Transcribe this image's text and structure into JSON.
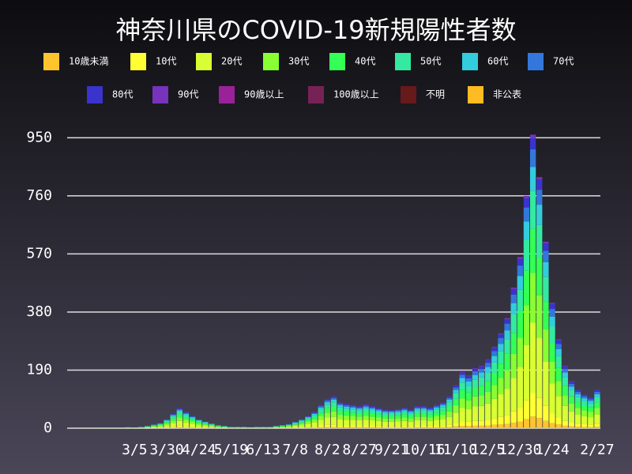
{
  "chart_data": {
    "type": "stacked-bar",
    "title": "神奈川県のCOVID-19新規陽性者数",
    "categories": [
      null,
      null,
      null,
      null,
      null,
      null,
      null,
      null,
      null,
      null,
      "3/5",
      null,
      null,
      null,
      null,
      "3/30",
      null,
      null,
      null,
      null,
      "4/24",
      null,
      null,
      null,
      null,
      "5/19",
      null,
      null,
      null,
      null,
      "6/13",
      null,
      null,
      null,
      null,
      "7/8",
      null,
      null,
      null,
      null,
      "8/2",
      null,
      null,
      null,
      null,
      "8/27",
      null,
      null,
      null,
      null,
      "9/21",
      null,
      null,
      null,
      null,
      "10/16",
      null,
      null,
      null,
      null,
      "11/10",
      null,
      null,
      null,
      null,
      "12/5",
      null,
      null,
      null,
      null,
      "12/30",
      null,
      null,
      null,
      null,
      "1/24",
      null,
      null,
      null,
      null,
      null,
      null,
      "2/27"
    ],
    "ylim": [
      0,
      1000
    ],
    "yticks": [
      0,
      190,
      380,
      570,
      760,
      950
    ],
    "grid": true,
    "series": [
      {
        "name": "10歳未満",
        "color": "#ffc42e",
        "values": [
          0,
          0,
          0,
          0,
          0,
          0,
          0,
          0,
          0,
          0,
          0,
          0,
          0,
          0,
          1,
          1,
          2,
          3,
          2,
          2,
          1,
          1,
          1,
          0,
          0,
          0,
          0,
          0,
          0,
          0,
          0,
          0,
          0,
          0,
          1,
          1,
          1,
          2,
          2,
          3,
          4,
          4,
          3,
          3,
          3,
          3,
          3,
          3,
          3,
          2,
          2,
          2,
          3,
          2,
          3,
          3,
          3,
          3,
          3,
          4,
          6,
          7,
          7,
          8,
          8,
          9,
          11,
          12,
          14,
          18,
          22,
          30,
          38,
          33,
          24,
          16,
          12,
          8,
          6,
          5,
          4,
          4,
          5
        ]
      },
      {
        "name": "10代",
        "color": "#ffff33",
        "values": [
          0,
          0,
          0,
          0,
          0,
          0,
          0,
          0,
          0,
          0,
          0,
          0,
          1,
          1,
          1,
          2,
          4,
          5,
          4,
          3,
          2,
          2,
          1,
          1,
          1,
          0,
          0,
          0,
          0,
          0,
          0,
          0,
          1,
          1,
          1,
          2,
          2,
          3,
          4,
          6,
          8,
          8,
          7,
          6,
          6,
          6,
          6,
          6,
          5,
          5,
          5,
          5,
          5,
          5,
          6,
          6,
          5,
          6,
          7,
          8,
          11,
          15,
          14,
          16,
          16,
          18,
          21,
          25,
          29,
          37,
          45,
          61,
          77,
          66,
          49,
          33,
          23,
          16,
          12,
          10,
          9,
          8,
          10
        ]
      },
      {
        "name": "20代",
        "color": "#d8ff33",
        "values": [
          0,
          0,
          1,
          0,
          1,
          1,
          1,
          1,
          1,
          1,
          1,
          1,
          2,
          3,
          4,
          7,
          11,
          16,
          13,
          10,
          7,
          5,
          4,
          2,
          2,
          1,
          1,
          1,
          1,
          1,
          1,
          1,
          2,
          2,
          3,
          5,
          7,
          10,
          13,
          18,
          23,
          25,
          20,
          19,
          18,
          17,
          19,
          17,
          16,
          14,
          14,
          15,
          16,
          14,
          17,
          17,
          16,
          18,
          20,
          25,
          34,
          44,
          41,
          47,
          49,
          54,
          64,
          74,
          86,
          110,
          134,
          182,
          230,
          197,
          146,
          98,
          70,
          49,
          37,
          30,
          26,
          24,
          30
        ]
      },
      {
        "name": "30代",
        "color": "#88ff33",
        "values": [
          0,
          0,
          0,
          0,
          0,
          0,
          0,
          0,
          0,
          1,
          1,
          1,
          1,
          2,
          3,
          5,
          8,
          11,
          9,
          7,
          5,
          4,
          3,
          2,
          1,
          1,
          1,
          1,
          1,
          1,
          1,
          1,
          1,
          2,
          2,
          3,
          5,
          7,
          9,
          13,
          16,
          18,
          14,
          14,
          13,
          12,
          13,
          12,
          11,
          10,
          10,
          11,
          11,
          10,
          12,
          12,
          11,
          13,
          14,
          18,
          24,
          31,
          29,
          33,
          35,
          38,
          45,
          53,
          61,
          78,
          95,
          129,
          163,
          139,
          104,
          70,
          49,
          35,
          26,
          21,
          19,
          17,
          21
        ]
      },
      {
        "name": "40代",
        "color": "#33ff55",
        "values": [
          0,
          0,
          0,
          0,
          0,
          0,
          1,
          0,
          1,
          0,
          0,
          1,
          1,
          2,
          3,
          5,
          7,
          10,
          8,
          6,
          5,
          3,
          2,
          2,
          1,
          1,
          1,
          1,
          0,
          1,
          1,
          1,
          1,
          2,
          2,
          3,
          5,
          6,
          8,
          11,
          14,
          16,
          13,
          12,
          11,
          11,
          12,
          11,
          10,
          9,
          9,
          9,
          10,
          9,
          11,
          11,
          10,
          11,
          13,
          16,
          21,
          28,
          26,
          29,
          31,
          34,
          40,
          47,
          54,
          69,
          84,
          114,
          144,
          123,
          92,
          62,
          44,
          31,
          23,
          19,
          17,
          15,
          19
        ]
      },
      {
        "name": "50代",
        "color": "#33eaa0",
        "values": [
          0,
          0,
          0,
          0,
          0,
          0,
          0,
          0,
          0,
          1,
          0,
          1,
          1,
          2,
          2,
          4,
          6,
          8,
          7,
          5,
          4,
          3,
          2,
          1,
          1,
          1,
          1,
          1,
          1,
          1,
          1,
          1,
          1,
          1,
          2,
          3,
          4,
          5,
          7,
          10,
          12,
          14,
          11,
          10,
          10,
          9,
          10,
          9,
          8,
          8,
          8,
          8,
          9,
          8,
          9,
          9,
          9,
          10,
          11,
          14,
          18,
          24,
          22,
          25,
          27,
          29,
          34,
          40,
          47,
          60,
          73,
          99,
          125,
          107,
          79,
          53,
          38,
          27,
          20,
          16,
          14,
          13,
          16
        ]
      },
      {
        "name": "60代",
        "color": "#33ccdd",
        "values": [
          0,
          0,
          0,
          0,
          0,
          0,
          0,
          0,
          0,
          0,
          0,
          0,
          1,
          1,
          1,
          2,
          4,
          5,
          4,
          3,
          2,
          2,
          1,
          1,
          1,
          0,
          0,
          0,
          0,
          0,
          0,
          0,
          1,
          1,
          1,
          2,
          2,
          3,
          4,
          6,
          8,
          8,
          7,
          6,
          6,
          6,
          6,
          6,
          5,
          5,
          5,
          5,
          5,
          5,
          6,
          6,
          5,
          6,
          7,
          8,
          11,
          15,
          14,
          16,
          16,
          18,
          21,
          25,
          29,
          37,
          45,
          61,
          77,
          66,
          49,
          33,
          23,
          16,
          12,
          10,
          9,
          8,
          10
        ]
      },
      {
        "name": "70代",
        "color": "#3377dd",
        "values": [
          0,
          0,
          0,
          0,
          0,
          0,
          0,
          0,
          0,
          0,
          0,
          0,
          0,
          1,
          1,
          2,
          3,
          4,
          3,
          2,
          2,
          1,
          1,
          1,
          0,
          0,
          0,
          0,
          0,
          0,
          0,
          0,
          0,
          1,
          1,
          1,
          2,
          2,
          3,
          5,
          6,
          6,
          5,
          5,
          5,
          4,
          5,
          4,
          4,
          4,
          3,
          4,
          4,
          4,
          4,
          4,
          4,
          5,
          5,
          6,
          8,
          11,
          10,
          12,
          12,
          14,
          16,
          19,
          22,
          28,
          34,
          46,
          58,
          49,
          37,
          25,
          17,
          12,
          9,
          8,
          7,
          6,
          8
        ]
      },
      {
        "name": "80代",
        "color": "#3a33cc",
        "values": [
          0,
          0,
          0,
          0,
          0,
          0,
          0,
          0,
          0,
          0,
          0,
          0,
          0,
          0,
          1,
          1,
          2,
          3,
          2,
          2,
          1,
          1,
          1,
          0,
          0,
          0,
          0,
          0,
          0,
          0,
          0,
          0,
          0,
          0,
          1,
          1,
          1,
          2,
          2,
          3,
          4,
          4,
          3,
          3,
          3,
          3,
          3,
          3,
          3,
          2,
          2,
          2,
          3,
          2,
          3,
          3,
          3,
          3,
          3,
          4,
          6,
          7,
          7,
          8,
          8,
          9,
          11,
          12,
          14,
          18,
          22,
          30,
          38,
          33,
          24,
          16,
          12,
          8,
          6,
          5,
          4,
          4,
          5
        ]
      },
      {
        "name": "90代",
        "color": "#7733bb",
        "values": [
          0,
          0,
          0,
          0,
          0,
          0,
          0,
          0,
          0,
          0,
          0,
          0,
          0,
          0,
          0,
          0,
          0,
          1,
          1,
          0,
          0,
          0,
          0,
          0,
          0,
          0,
          0,
          0,
          0,
          0,
          0,
          0,
          0,
          0,
          0,
          0,
          0,
          0,
          1,
          1,
          1,
          1,
          1,
          1,
          1,
          1,
          1,
          1,
          1,
          1,
          1,
          1,
          1,
          1,
          1,
          1,
          1,
          1,
          1,
          1,
          1,
          2,
          2,
          2,
          2,
          2,
          3,
          3,
          4,
          5,
          6,
          8,
          10,
          8,
          6,
          4,
          3,
          2,
          2,
          1,
          1,
          1,
          1
        ]
      },
      {
        "name": "90歳以上",
        "color": "#992299",
        "values": [
          0,
          0,
          0,
          0,
          0,
          0,
          0,
          0,
          0,
          0,
          0,
          0,
          0,
          0,
          0,
          0,
          0,
          0,
          0,
          0,
          0,
          0,
          0,
          0,
          0,
          0,
          0,
          0,
          0,
          0,
          0,
          0,
          0,
          0,
          0,
          0,
          0,
          0,
          0,
          0,
          0,
          0,
          0,
          0,
          0,
          0,
          0,
          0,
          0,
          0,
          0,
          0,
          0,
          0,
          0,
          0,
          0,
          0,
          0,
          0,
          0,
          0,
          0,
          0,
          0,
          0,
          0,
          0,
          0,
          0,
          0,
          0,
          0,
          0,
          0,
          0,
          0,
          0,
          0,
          0,
          0,
          0,
          0
        ]
      },
      {
        "name": "100歳以上",
        "color": "#772255",
        "values": [
          0,
          0,
          0,
          0,
          0,
          0,
          0,
          0,
          0,
          0,
          0,
          0,
          0,
          0,
          0,
          0,
          0,
          0,
          0,
          0,
          0,
          0,
          0,
          0,
          0,
          0,
          0,
          0,
          0,
          0,
          0,
          0,
          0,
          0,
          0,
          0,
          0,
          0,
          0,
          0,
          0,
          0,
          0,
          0,
          0,
          0,
          0,
          0,
          0,
          0,
          0,
          0,
          0,
          0,
          0,
          0,
          0,
          0,
          0,
          0,
          0,
          0,
          0,
          0,
          0,
          0,
          0,
          0,
          0,
          0,
          0,
          0,
          0,
          0,
          0,
          0,
          0,
          0,
          0,
          0,
          0,
          0,
          0
        ]
      },
      {
        "name": "不明",
        "color": "#661a1a",
        "values": [
          0,
          0,
          0,
          0,
          0,
          0,
          0,
          0,
          0,
          0,
          0,
          0,
          0,
          0,
          0,
          0,
          0,
          0,
          0,
          0,
          0,
          0,
          0,
          0,
          0,
          0,
          0,
          0,
          0,
          0,
          0,
          0,
          0,
          0,
          0,
          0,
          0,
          0,
          0,
          0,
          0,
          0,
          0,
          0,
          0,
          0,
          0,
          0,
          0,
          0,
          0,
          0,
          0,
          0,
          0,
          0,
          0,
          0,
          0,
          0,
          0,
          0,
          0,
          0,
          0,
          0,
          0,
          0,
          0,
          0,
          0,
          0,
          0,
          0,
          0,
          0,
          0,
          0,
          0,
          0,
          0,
          0,
          0
        ]
      },
      {
        "name": "非公表",
        "color": "#ffbb22",
        "values": [
          0,
          0,
          0,
          0,
          0,
          0,
          0,
          0,
          0,
          0,
          0,
          0,
          0,
          0,
          0,
          0,
          0,
          0,
          0,
          0,
          0,
          0,
          0,
          0,
          0,
          0,
          0,
          0,
          0,
          0,
          0,
          0,
          0,
          0,
          0,
          0,
          0,
          0,
          0,
          0,
          0,
          0,
          0,
          0,
          0,
          0,
          0,
          0,
          0,
          0,
          0,
          0,
          0,
          0,
          0,
          0,
          0,
          0,
          0,
          0,
          0,
          0,
          0,
          0,
          0,
          0,
          0,
          0,
          0,
          0,
          0,
          0,
          0,
          0,
          0,
          0,
          0,
          0,
          0,
          0,
          0,
          0,
          0
        ]
      }
    ]
  }
}
